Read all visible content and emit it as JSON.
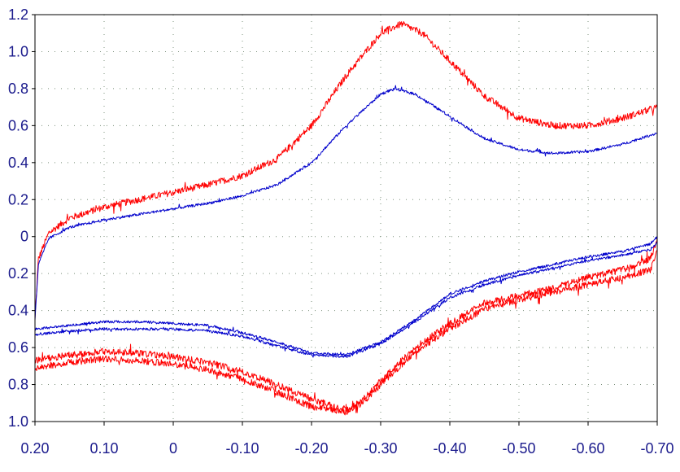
{
  "chart_data": {
    "type": "line",
    "title": "",
    "xlabel": "",
    "ylabel": "",
    "xlim": [
      0.2,
      -0.7
    ],
    "ylim": [
      -1.0,
      1.2
    ],
    "x_reversed": true,
    "grid": true,
    "x_ticks": [
      0.2,
      0.1,
      0.0,
      -0.1,
      -0.2,
      -0.3,
      -0.4,
      -0.5,
      -0.6,
      -0.7
    ],
    "x_tick_labels": [
      "0.20",
      "0.10",
      "0",
      "-0.10",
      "-0.20",
      "-0.30",
      "-0.40",
      "-0.50",
      "-0.60",
      "-0.70"
    ],
    "y_ticks": [
      1.2,
      1.0,
      0.8,
      0.6,
      0.4,
      0.2,
      0.0,
      -0.2,
      -0.4,
      -0.6,
      -0.8,
      -1.0
    ],
    "y_tick_labels": [
      "1.2",
      "1.0",
      "0.8",
      "0.6",
      "0.4",
      "0.2",
      "0",
      "0.2",
      "0.4",
      "0.6",
      "0.8",
      "1.0"
    ],
    "series": [
      {
        "color": "#ff0000",
        "noise": 0.018,
        "segments": [
          [
            [
              0.2,
              -0.45
            ],
            [
              0.195,
              -0.12
            ],
            [
              0.18,
              0.02
            ],
            [
              0.15,
              0.1
            ],
            [
              0.1,
              0.16
            ],
            [
              0.05,
              0.2
            ],
            [
              0.0,
              0.24
            ],
            [
              -0.05,
              0.28
            ],
            [
              -0.1,
              0.33
            ],
            [
              -0.15,
              0.42
            ],
            [
              -0.2,
              0.6
            ],
            [
              -0.25,
              0.87
            ],
            [
              -0.3,
              1.1
            ],
            [
              -0.33,
              1.15
            ],
            [
              -0.36,
              1.1
            ],
            [
              -0.4,
              0.95
            ],
            [
              -0.45,
              0.76
            ],
            [
              -0.5,
              0.64
            ],
            [
              -0.55,
              0.6
            ],
            [
              -0.6,
              0.6
            ],
            [
              -0.65,
              0.64
            ],
            [
              -0.7,
              0.7
            ]
          ],
          [
            [
              -0.7,
              -0.02
            ],
            [
              -0.69,
              -0.12
            ],
            [
              -0.65,
              -0.18
            ],
            [
              -0.6,
              -0.22
            ],
            [
              -0.55,
              -0.28
            ],
            [
              -0.5,
              -0.32
            ],
            [
              -0.45,
              -0.36
            ],
            [
              -0.4,
              -0.47
            ],
            [
              -0.35,
              -0.6
            ],
            [
              -0.3,
              -0.78
            ],
            [
              -0.27,
              -0.9
            ],
            [
              -0.25,
              -0.94
            ],
            [
              -0.2,
              -0.88
            ],
            [
              -0.15,
              -0.8
            ],
            [
              -0.1,
              -0.73
            ],
            [
              -0.05,
              -0.68
            ],
            [
              0.0,
              -0.65
            ],
            [
              0.05,
              -0.63
            ],
            [
              0.1,
              -0.62
            ],
            [
              0.15,
              -0.64
            ],
            [
              0.2,
              -0.67
            ]
          ],
          [
            [
              -0.7,
              -0.08
            ],
            [
              -0.69,
              -0.18
            ],
            [
              -0.65,
              -0.22
            ],
            [
              -0.6,
              -0.26
            ],
            [
              -0.55,
              -0.3
            ],
            [
              -0.5,
              -0.34
            ],
            [
              -0.45,
              -0.39
            ],
            [
              -0.4,
              -0.5
            ],
            [
              -0.35,
              -0.62
            ],
            [
              -0.3,
              -0.8
            ],
            [
              -0.27,
              -0.91
            ],
            [
              -0.25,
              -0.95
            ],
            [
              -0.2,
              -0.92
            ],
            [
              -0.15,
              -0.84
            ],
            [
              -0.1,
              -0.77
            ],
            [
              -0.05,
              -0.72
            ],
            [
              0.0,
              -0.69
            ],
            [
              0.05,
              -0.67
            ],
            [
              0.1,
              -0.66
            ],
            [
              0.15,
              -0.68
            ],
            [
              0.2,
              -0.71
            ]
          ]
        ]
      },
      {
        "color": "#0000cc",
        "noise": 0.007,
        "segments": [
          [
            [
              0.2,
              -0.45
            ],
            [
              0.195,
              -0.15
            ],
            [
              0.18,
              -0.01
            ],
            [
              0.15,
              0.05
            ],
            [
              0.1,
              0.09
            ],
            [
              0.05,
              0.12
            ],
            [
              0.0,
              0.15
            ],
            [
              -0.05,
              0.18
            ],
            [
              -0.1,
              0.22
            ],
            [
              -0.15,
              0.28
            ],
            [
              -0.2,
              0.4
            ],
            [
              -0.25,
              0.6
            ],
            [
              -0.3,
              0.77
            ],
            [
              -0.32,
              0.8
            ],
            [
              -0.35,
              0.77
            ],
            [
              -0.4,
              0.65
            ],
            [
              -0.45,
              0.53
            ],
            [
              -0.5,
              0.47
            ],
            [
              -0.55,
              0.45
            ],
            [
              -0.6,
              0.46
            ],
            [
              -0.65,
              0.5
            ],
            [
              -0.7,
              0.56
            ]
          ],
          [
            [
              -0.7,
              0.0
            ],
            [
              -0.69,
              -0.04
            ],
            [
              -0.65,
              -0.08
            ],
            [
              -0.6,
              -0.11
            ],
            [
              -0.55,
              -0.15
            ],
            [
              -0.5,
              -0.19
            ],
            [
              -0.45,
              -0.24
            ],
            [
              -0.4,
              -0.31
            ],
            [
              -0.35,
              -0.45
            ],
            [
              -0.3,
              -0.57
            ],
            [
              -0.25,
              -0.64
            ],
            [
              -0.2,
              -0.63
            ],
            [
              -0.15,
              -0.57
            ],
            [
              -0.1,
              -0.52
            ],
            [
              -0.05,
              -0.48
            ],
            [
              0.0,
              -0.47
            ],
            [
              0.05,
              -0.46
            ],
            [
              0.1,
              -0.46
            ],
            [
              0.15,
              -0.48
            ],
            [
              0.2,
              -0.5
            ]
          ],
          [
            [
              -0.7,
              -0.03
            ],
            [
              -0.69,
              -0.07
            ],
            [
              -0.65,
              -0.1
            ],
            [
              -0.6,
              -0.13
            ],
            [
              -0.55,
              -0.17
            ],
            [
              -0.5,
              -0.21
            ],
            [
              -0.45,
              -0.26
            ],
            [
              -0.4,
              -0.33
            ],
            [
              -0.35,
              -0.46
            ],
            [
              -0.3,
              -0.58
            ],
            [
              -0.25,
              -0.65
            ],
            [
              -0.2,
              -0.64
            ],
            [
              -0.15,
              -0.59
            ],
            [
              -0.1,
              -0.54
            ],
            [
              -0.05,
              -0.51
            ],
            [
              0.0,
              -0.5
            ],
            [
              0.05,
              -0.5
            ],
            [
              0.1,
              -0.5
            ],
            [
              0.15,
              -0.51
            ],
            [
              0.2,
              -0.53
            ]
          ]
        ]
      }
    ]
  }
}
